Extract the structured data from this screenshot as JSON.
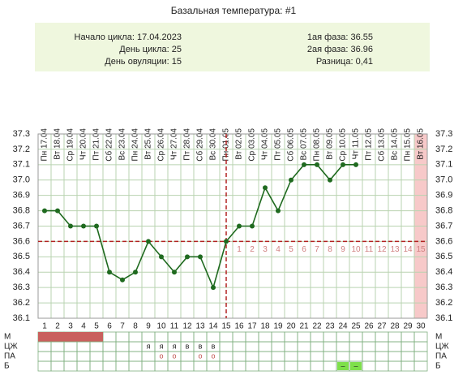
{
  "chart_data": {
    "type": "line",
    "title": "Базальная температура: #1",
    "info": {
      "left": [
        "Начало цикла: 17.04.2023",
        "День цикла: 25",
        "День овуляции: 15"
      ],
      "right": [
        "1ая фаза: 36.55",
        "2ая фаза: 36.96",
        "Разница: 0,41"
      ]
    },
    "x": [
      1,
      2,
      3,
      4,
      5,
      6,
      7,
      8,
      9,
      10,
      11,
      12,
      13,
      14,
      15,
      16,
      17,
      18,
      19,
      20,
      21,
      22,
      23,
      24,
      25,
      26,
      27,
      28,
      29,
      30
    ],
    "date_labels": [
      "Пн 17.04",
      "Вт 18.04",
      "Ср 19.04",
      "Чт 20.04",
      "Пт 21.04",
      "Сб 22.04",
      "Вс 23.04",
      "Пн 24.04",
      "Вт 25.04",
      "Ср 26.04",
      "Чт 27.04",
      "Пт 28.04",
      "Сб 29.04",
      "Вс 30.04",
      "Пн 01.05",
      "Вт 02.05",
      "Ср 03.05",
      "Чт 04.05",
      "Пт 05.05",
      "Сб 06.05",
      "Вс 07.05",
      "Пн 08.05",
      "Вт 09.05",
      "Ср 10.05",
      "Чт 11.05",
      "Пт 12.05",
      "Сб 13.05",
      "Вс 14.05",
      "Пн 15.05",
      "Вт 16.05"
    ],
    "values": [
      36.8,
      36.8,
      36.7,
      36.7,
      36.7,
      36.4,
      36.35,
      36.4,
      36.6,
      36.5,
      36.4,
      36.5,
      36.5,
      36.3,
      36.6,
      36.7,
      36.7,
      36.95,
      36.8,
      37.0,
      37.1,
      37.1,
      37.0,
      37.1,
      37.1,
      null,
      null,
      null,
      null,
      null
    ],
    "color": "#1f6a1f",
    "xlim": [
      0.5,
      30.5
    ],
    "ylim": [
      36.1,
      37.3
    ],
    "yticks": [
      36.1,
      36.2,
      36.3,
      36.4,
      36.5,
      36.6,
      36.7,
      36.8,
      36.9,
      {
        "value": 37,
        "label": "37.0"
      },
      37.1,
      37.2,
      37.3
    ],
    "grid": true,
    "coverline": 36.6,
    "ovulation_day": 15,
    "luteal_day_labels": [
      1,
      2,
      3,
      4,
      5,
      6,
      7,
      8,
      9,
      10,
      11,
      12,
      13,
      14,
      15
    ],
    "rows": [
      {
        "label": "М",
        "days": [
          1,
          2,
          3,
          4,
          5
        ],
        "color": "#c9605d"
      },
      {
        "label": "ЦЖ",
        "days": [
          9,
          10,
          11,
          12,
          13,
          14
        ],
        "marks": [
          "я",
          "я",
          "я",
          "в",
          "в",
          "в"
        ]
      },
      {
        "label": "ПА",
        "days": [
          10,
          11,
          13,
          14
        ],
        "marks": [
          "о",
          "о",
          "о",
          "о"
        ],
        "color": "#c0504d"
      },
      {
        "label": "Б",
        "days": [
          24,
          25
        ],
        "marks": [
          "–",
          "–"
        ],
        "color": "#7ee04a"
      }
    ]
  }
}
